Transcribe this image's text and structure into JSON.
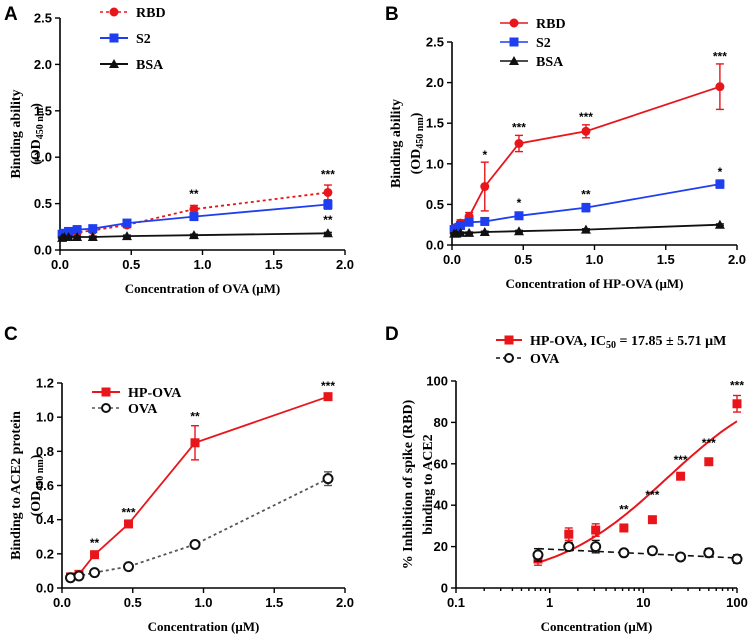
{
  "colors": {
    "red": "#e8161b",
    "blue": "#1f3ef0",
    "black": "#111111",
    "gray": "#555555"
  },
  "chart_data": [
    {
      "panel": "A",
      "type": "line",
      "xlabel": "Concentration of OVA (μM)",
      "ylabel_main": "Binding ability",
      "ylabel_sub_pre": "(OD",
      "ylabel_sub_idx": "450 nm",
      "ylabel_sub_post": ")",
      "xlim": [
        0,
        2.0
      ],
      "ylim": [
        0,
        2.5
      ],
      "xticks": [
        0,
        0.5,
        1.0,
        1.5,
        2.0
      ],
      "xtick_labels": [
        "0.0",
        "0.5",
        "1.0",
        "1.5",
        "2.0"
      ],
      "yticks": [
        0,
        0.5,
        1.0,
        1.5,
        2.0,
        2.5
      ],
      "ytick_labels": [
        "0.0",
        "0.5",
        "1.0",
        "1.5",
        "2.0",
        "2.5"
      ],
      "series": [
        {
          "name": "RBD",
          "color": "red",
          "marker": "circle",
          "dash": "3,3",
          "x": [
            0.015,
            0.03,
            0.06,
            0.12,
            0.23,
            0.47,
            0.94,
            1.88
          ],
          "y": [
            0.15,
            0.16,
            0.17,
            0.19,
            0.21,
            0.27,
            0.44,
            0.62
          ],
          "err": [
            0.02,
            0.02,
            0.02,
            0.02,
            0.02,
            0.03,
            0.04,
            0.08
          ]
        },
        {
          "name": "S2",
          "color": "blue",
          "marker": "square",
          "dash": "",
          "x": [
            0.015,
            0.03,
            0.06,
            0.12,
            0.23,
            0.47,
            0.94,
            1.88
          ],
          "y": [
            0.17,
            0.18,
            0.2,
            0.22,
            0.23,
            0.29,
            0.36,
            0.49
          ],
          "err": [
            0.02,
            0.02,
            0.02,
            0.02,
            0.02,
            0.02,
            0.03,
            0.05
          ]
        },
        {
          "name": "BSA",
          "color": "black",
          "marker": "triangle",
          "dash": "",
          "x": [
            0.015,
            0.03,
            0.06,
            0.12,
            0.23,
            0.47,
            0.94,
            1.88
          ],
          "y": [
            0.13,
            0.14,
            0.14,
            0.14,
            0.14,
            0.15,
            0.16,
            0.18
          ],
          "err": [
            0.01,
            0.01,
            0.01,
            0.01,
            0.01,
            0.01,
            0.01,
            0.01
          ]
        }
      ],
      "annotations": [
        {
          "text": "**",
          "x": 0.94,
          "y": 0.56
        },
        {
          "text": "***",
          "x": 1.88,
          "y": 0.77
        },
        {
          "text": "**",
          "x": 1.88,
          "y": 0.28
        }
      ]
    },
    {
      "panel": "B",
      "type": "line",
      "xlabel": "Concentration of HP-OVA (μM)",
      "ylabel_main": "Binding ability",
      "ylabel_sub_pre": "(OD",
      "ylabel_sub_idx": "450 nm",
      "ylabel_sub_post": ")",
      "xlim": [
        0,
        2.0
      ],
      "ylim": [
        0,
        2.5
      ],
      "xticks": [
        0,
        0.5,
        1.0,
        1.5,
        2.0
      ],
      "xtick_labels": [
        "0.0",
        "0.5",
        "1.0",
        "1.5",
        "2.0"
      ],
      "yticks": [
        0,
        0.5,
        1.0,
        1.5,
        2.0,
        2.5
      ],
      "ytick_labels": [
        "0.0",
        "0.5",
        "1.0",
        "1.5",
        "2.0",
        "2.5"
      ],
      "series": [
        {
          "name": "RBD",
          "color": "red",
          "marker": "circle",
          "dash": "",
          "x": [
            0.015,
            0.03,
            0.06,
            0.12,
            0.23,
            0.47,
            0.94,
            1.88
          ],
          "y": [
            0.2,
            0.22,
            0.27,
            0.35,
            0.72,
            1.25,
            1.4,
            1.95
          ],
          "err": [
            0.03,
            0.03,
            0.04,
            0.05,
            0.3,
            0.1,
            0.08,
            0.28
          ]
        },
        {
          "name": "S2",
          "color": "blue",
          "marker": "square",
          "dash": "",
          "x": [
            0.015,
            0.03,
            0.06,
            0.12,
            0.23,
            0.47,
            0.94,
            1.88
          ],
          "y": [
            0.19,
            0.2,
            0.24,
            0.28,
            0.29,
            0.36,
            0.46,
            0.75
          ],
          "err": [
            0.02,
            0.02,
            0.02,
            0.02,
            0.02,
            0.03,
            0.05,
            0.05
          ]
        },
        {
          "name": "BSA",
          "color": "black",
          "marker": "triangle",
          "dash": "",
          "x": [
            0.015,
            0.03,
            0.06,
            0.12,
            0.23,
            0.47,
            0.94,
            1.88
          ],
          "y": [
            0.14,
            0.14,
            0.15,
            0.15,
            0.16,
            0.17,
            0.19,
            0.25
          ],
          "err": [
            0.01,
            0.01,
            0.01,
            0.01,
            0.01,
            0.01,
            0.01,
            0.01
          ]
        }
      ],
      "annotations": [
        {
          "text": "*",
          "x": 0.23,
          "y": 1.06
        },
        {
          "text": "***",
          "x": 0.47,
          "y": 1.4
        },
        {
          "text": "***",
          "x": 0.94,
          "y": 1.53
        },
        {
          "text": "***",
          "x": 1.88,
          "y": 2.27
        },
        {
          "text": "*",
          "x": 0.47,
          "y": 0.47
        },
        {
          "text": "**",
          "x": 0.94,
          "y": 0.57
        },
        {
          "text": "*",
          "x": 1.88,
          "y": 0.85
        }
      ]
    },
    {
      "panel": "C",
      "type": "line",
      "xlabel": "Concentration (μM)",
      "ylabel_main": "Binding to ACE2 protein",
      "ylabel_sub_pre": "(OD",
      "ylabel_sub_idx": "450 nm",
      "ylabel_sub_post": ")",
      "xlim": [
        0,
        2.0
      ],
      "ylim": [
        0,
        1.2
      ],
      "xticks": [
        0,
        0.5,
        1.0,
        1.5,
        2.0
      ],
      "xtick_labels": [
        "0.0",
        "0.5",
        "1.0",
        "1.5",
        "2.0"
      ],
      "yticks": [
        0,
        0.2,
        0.4,
        0.6,
        0.8,
        1.0,
        1.2
      ],
      "ytick_labels": [
        "0.0",
        "0.2",
        "0.4",
        "0.6",
        "0.8",
        "1.0",
        "1.2"
      ],
      "series": [
        {
          "name": "HP-OVA",
          "color": "red",
          "marker": "square",
          "dash": "",
          "x": [
            0.06,
            0.12,
            0.23,
            0.47,
            0.94,
            1.88
          ],
          "y": [
            0.065,
            0.08,
            0.195,
            0.375,
            0.85,
            1.12
          ],
          "err": [
            0.01,
            0.01,
            0.015,
            0.02,
            0.1,
            0.02
          ]
        },
        {
          "name": "OVA",
          "color": "gray",
          "marker": "opencircle",
          "dash": "3,3",
          "x": [
            0.06,
            0.12,
            0.23,
            0.47,
            0.94,
            1.88
          ],
          "y": [
            0.06,
            0.07,
            0.09,
            0.125,
            0.255,
            0.64
          ],
          "err": [
            0.01,
            0.01,
            0.01,
            0.01,
            0.015,
            0.04
          ]
        }
      ],
      "annotations": [
        {
          "text": "**",
          "x": 0.23,
          "y": 0.24
        },
        {
          "text": "***",
          "x": 0.47,
          "y": 0.42
        },
        {
          "text": "**",
          "x": 0.94,
          "y": 0.98
        },
        {
          "text": "***",
          "x": 1.88,
          "y": 1.16
        }
      ]
    },
    {
      "panel": "D",
      "type": "scatter",
      "xscale": "log",
      "xlabel": "Concentration (μM)",
      "ylabel_main": "% Inhibition of  spike (RBD)",
      "ylabel_line2": "binding to ACE2",
      "xlim": [
        0.1,
        100
      ],
      "ylim": [
        0,
        100
      ],
      "xticks": [
        0.1,
        1,
        10,
        100
      ],
      "xtick_labels": [
        "0.1",
        "1",
        "10",
        "100"
      ],
      "yticks": [
        0,
        20,
        40,
        60,
        80,
        100
      ],
      "ytick_labels": [
        "0",
        "20",
        "40",
        "60",
        "80",
        "100"
      ],
      "series": [
        {
          "name": "HP-OVA, IC50 = 17.85 ± 5.71 μM",
          "color": "red",
          "marker": "square",
          "dash": "",
          "x": [
            0.75,
            1.6,
            3.1,
            6.2,
            12.5,
            25,
            50,
            100
          ],
          "y": [
            14,
            26,
            28,
            29,
            33,
            54,
            61,
            89
          ],
          "err": [
            3,
            3,
            3,
            1.5,
            1.5,
            1.5,
            1.5,
            4
          ],
          "fit": "sigmoid"
        },
        {
          "name": "OVA",
          "color": "black",
          "marker": "opencircle",
          "dash": "6,4",
          "x": [
            0.75,
            1.6,
            3.1,
            6.2,
            12.5,
            25,
            50,
            100
          ],
          "y": [
            16,
            20,
            20,
            17,
            18,
            15,
            17,
            14
          ],
          "err": [
            3,
            2,
            3,
            1,
            1,
            1,
            2,
            2
          ],
          "fit": "linear"
        }
      ],
      "annotations": [
        {
          "text": "**",
          "x": 6.2,
          "y": 36
        },
        {
          "text": "***",
          "x": 12.5,
          "y": 43
        },
        {
          "text": "***",
          "x": 25,
          "y": 60
        },
        {
          "text": "***",
          "x": 50,
          "y": 68
        },
        {
          "text": "***",
          "x": 100,
          "y": 96
        }
      ]
    }
  ],
  "legend_D": {
    "hp_pre": "HP-OVA, IC",
    "hp_sub": "50",
    "hp_post": " = 17.85 ± 5.71 μM",
    "ova": "OVA"
  }
}
